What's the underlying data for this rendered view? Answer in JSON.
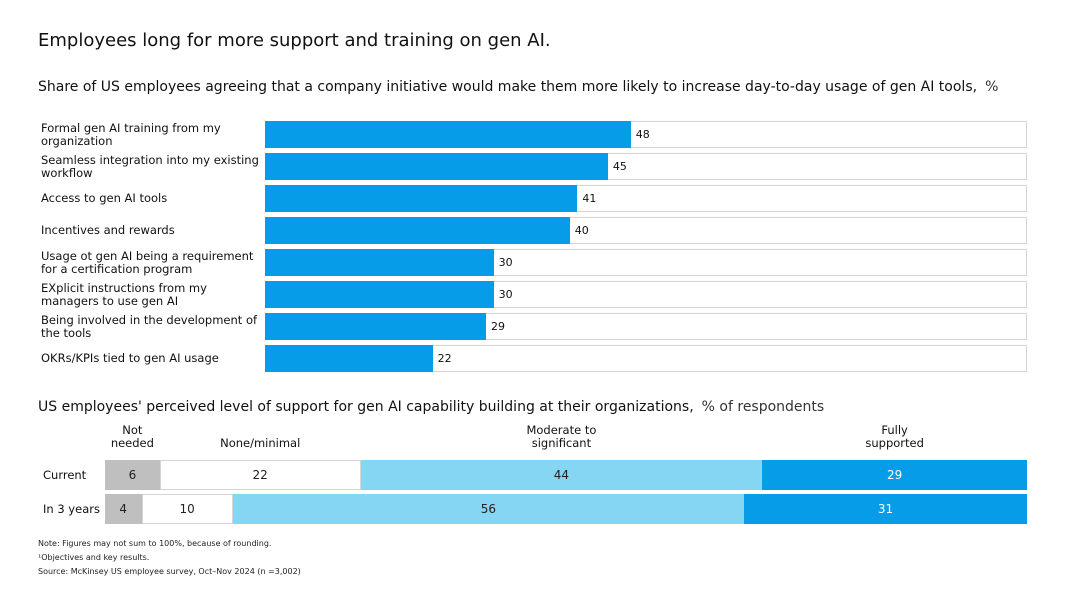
{
  "title": "Employees long for more support and training on gen AI.",
  "chart_data": [
    {
      "type": "bar",
      "orientation": "horizontal",
      "title": "Share of US employees agreeing that a company initiative would make them more likely to increase day-to-day usage of gen AI tools,",
      "unit": "%",
      "categories": [
        "Formal gen AI training from my organization",
        "Seamless integration into my existing workflow",
        "Access to gen AI tools",
        "Incentives and rewards",
        "Usage ot gen AI being a requirement for a certification program",
        "EXplicit instructions from my managers to use gen AI",
        "Being involved in the development of the tools",
        "OKRs/KPIs tied to gen AI usage"
      ],
      "values": [
        48,
        45,
        41,
        40,
        30,
        30,
        29,
        22
      ],
      "color": "#069ce8",
      "xlim": [
        0,
        100
      ]
    },
    {
      "type": "stacked_bar",
      "orientation": "horizontal",
      "title": "US employees' perceived level of support for gen AI capability building at their organizations,",
      "unit": "% of respondents",
      "categories": [
        "Current",
        "In 3 years"
      ],
      "series": [
        {
          "name": "Not needed",
          "color": "#bfbfbf",
          "values": [
            6,
            4
          ]
        },
        {
          "name": "None/minimal",
          "color": "#ffffff",
          "values": [
            22,
            10
          ]
        },
        {
          "name": "Moderate to significant",
          "color": "#85d6f3",
          "values": [
            44,
            56
          ]
        },
        {
          "name": "Fully supported",
          "color": "#069ce8",
          "values": [
            29,
            31
          ]
        }
      ]
    }
  ],
  "notes": [
    "Note: Figures may not sum to 100%,   because of rounding.",
    "¹Objectives and key results.",
    "Source: McKinsey US employee survey, Oct–Nov 2024   (n =3,002)"
  ]
}
